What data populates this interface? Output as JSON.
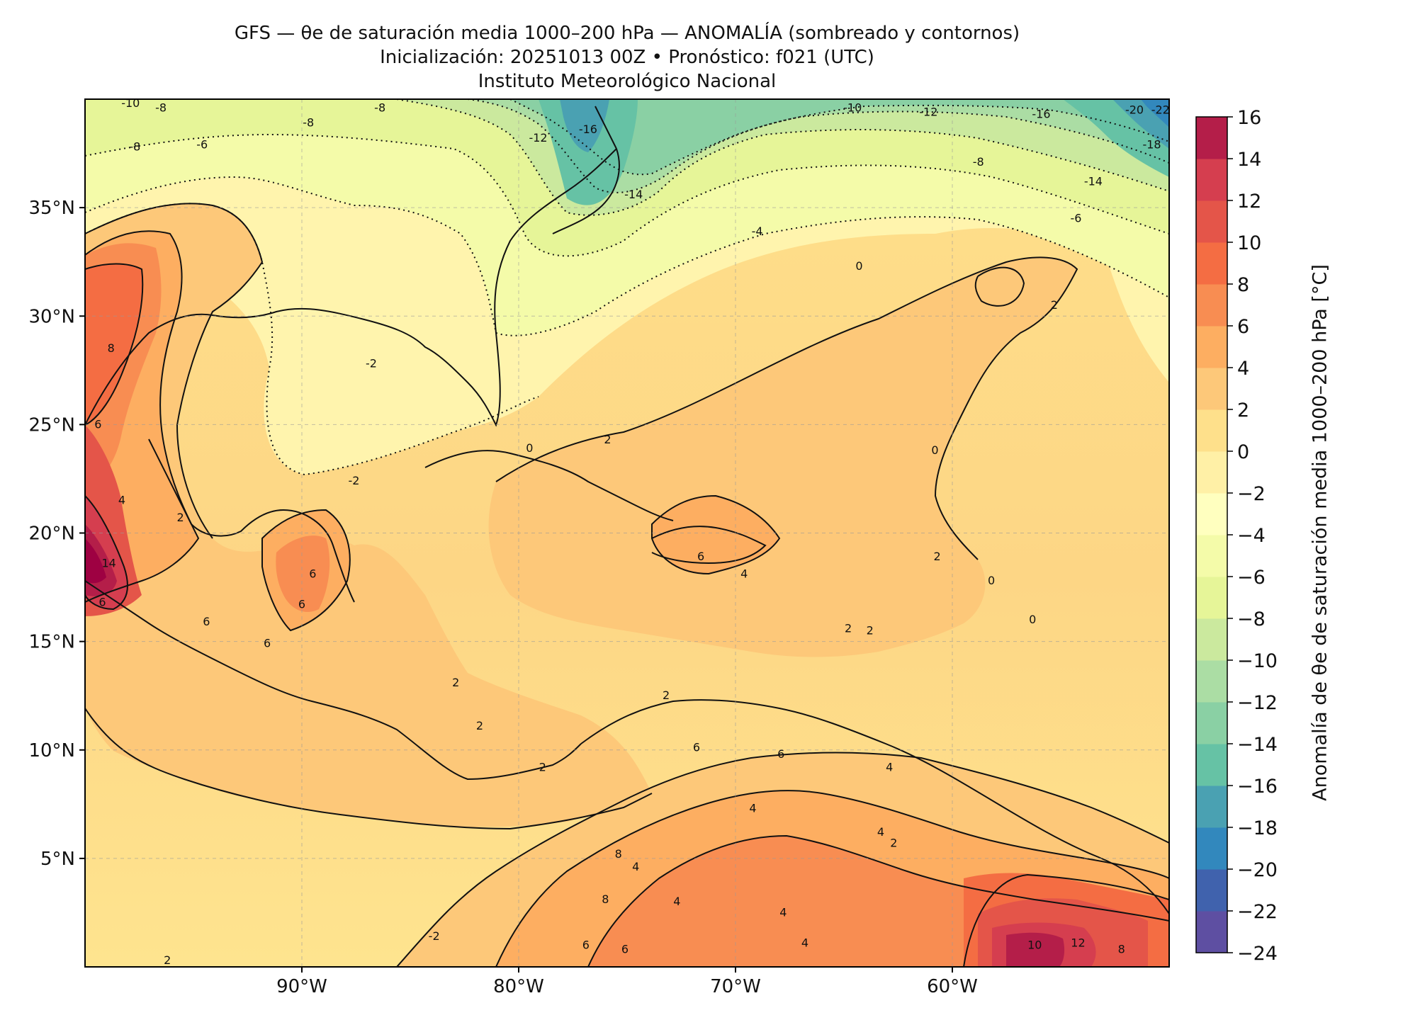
{
  "title": {
    "line1": "GFS — θe de saturación media 1000–200 hPa — ANOMALÍA (sombreado y contornos)",
    "line2": "Inicialización: 20251013 00Z   •   Pronóstico: f021 (UTC)",
    "line3": "Instituto Meteorológico Nacional"
  },
  "map": {
    "lon_range": [
      -100,
      -50
    ],
    "lat_range": [
      0,
      40
    ],
    "lon_ticks": [
      {
        "value": -90,
        "label": "90°W"
      },
      {
        "value": -80,
        "label": "80°W"
      },
      {
        "value": -70,
        "label": "70°W"
      },
      {
        "value": -60,
        "label": "60°W"
      }
    ],
    "lat_ticks": [
      {
        "value": 35,
        "label": "35°N"
      },
      {
        "value": 30,
        "label": "30°N"
      },
      {
        "value": 25,
        "label": "25°N"
      },
      {
        "value": 20,
        "label": "20°N"
      },
      {
        "value": 15,
        "label": "15°N"
      },
      {
        "value": 10,
        "label": "10°N"
      },
      {
        "value": 5,
        "label": "5°N"
      }
    ],
    "contour_labels": [
      {
        "text": "-10",
        "lon": -97.9,
        "lat": 39.8
      },
      {
        "text": "-8",
        "lon": -96.5,
        "lat": 39.6
      },
      {
        "text": "-8",
        "lon": -86.4,
        "lat": 39.6
      },
      {
        "text": "-8",
        "lon": -89.7,
        "lat": 38.9
      },
      {
        "text": "-8",
        "lon": -97.7,
        "lat": 37.8
      },
      {
        "text": "-6",
        "lon": -94.6,
        "lat": 37.9
      },
      {
        "text": "-12",
        "lon": -79.1,
        "lat": 38.2
      },
      {
        "text": "-16",
        "lon": -76.8,
        "lat": 38.6
      },
      {
        "text": "-14",
        "lon": -74.7,
        "lat": 35.6
      },
      {
        "text": "-10",
        "lon": -64.6,
        "lat": 39.6
      },
      {
        "text": "-12",
        "lon": -61.1,
        "lat": 39.4
      },
      {
        "text": "-16",
        "lon": -55.9,
        "lat": 39.3
      },
      {
        "text": "-20",
        "lon": -51.6,
        "lat": 39.5
      },
      {
        "text": "-22",
        "lon": -50.4,
        "lat": 39.5
      },
      {
        "text": "-18",
        "lon": -50.8,
        "lat": 37.9
      },
      {
        "text": "-8",
        "lon": -58.8,
        "lat": 37.1
      },
      {
        "text": "-14",
        "lon": -53.5,
        "lat": 36.2
      },
      {
        "text": "-6",
        "lon": -54.3,
        "lat": 34.5
      },
      {
        "text": "-4",
        "lon": -69.0,
        "lat": 33.9
      },
      {
        "text": "0",
        "lon": -64.3,
        "lat": 32.3
      },
      {
        "text": "2",
        "lon": -55.3,
        "lat": 30.5
      },
      {
        "text": "-2",
        "lon": -86.8,
        "lat": 27.8
      },
      {
        "text": "-2",
        "lon": -87.6,
        "lat": 22.4
      },
      {
        "text": "8",
        "lon": -98.8,
        "lat": 28.5
      },
      {
        "text": "6",
        "lon": -99.4,
        "lat": 25.0
      },
      {
        "text": "4",
        "lon": -98.3,
        "lat": 21.5
      },
      {
        "text": "14",
        "lon": -98.9,
        "lat": 18.6
      },
      {
        "text": "6",
        "lon": -99.2,
        "lat": 16.8
      },
      {
        "text": "2",
        "lon": -95.6,
        "lat": 20.7
      },
      {
        "text": "6",
        "lon": -89.5,
        "lat": 18.1
      },
      {
        "text": "6",
        "lon": -90.0,
        "lat": 16.7
      },
      {
        "text": "6",
        "lon": -94.4,
        "lat": 15.9
      },
      {
        "text": "6",
        "lon": -91.6,
        "lat": 14.9
      },
      {
        "text": "0",
        "lon": -79.5,
        "lat": 23.9
      },
      {
        "text": "2",
        "lon": -75.9,
        "lat": 24.3
      },
      {
        "text": "0",
        "lon": -60.8,
        "lat": 23.8
      },
      {
        "text": "6",
        "lon": -71.6,
        "lat": 18.9
      },
      {
        "text": "4",
        "lon": -69.6,
        "lat": 18.1
      },
      {
        "text": "2",
        "lon": -60.7,
        "lat": 18.9
      },
      {
        "text": "0",
        "lon": -58.2,
        "lat": 17.8
      },
      {
        "text": "0",
        "lon": -56.3,
        "lat": 16.0
      },
      {
        "text": "2",
        "lon": -64.8,
        "lat": 15.6
      },
      {
        "text": "2",
        "lon": -63.8,
        "lat": 15.5
      },
      {
        "text": "2",
        "lon": -82.9,
        "lat": 13.1
      },
      {
        "text": "2",
        "lon": -81.8,
        "lat": 11.1
      },
      {
        "text": "2",
        "lon": -78.9,
        "lat": 9.2
      },
      {
        "text": "2",
        "lon": -73.2,
        "lat": 12.5
      },
      {
        "text": "6",
        "lon": -71.8,
        "lat": 10.1
      },
      {
        "text": "6",
        "lon": -67.9,
        "lat": 9.8
      },
      {
        "text": "4",
        "lon": -62.9,
        "lat": 9.2
      },
      {
        "text": "4",
        "lon": -69.2,
        "lat": 7.3
      },
      {
        "text": "2",
        "lon": -62.7,
        "lat": 5.7
      },
      {
        "text": "4",
        "lon": -63.3,
        "lat": 6.2
      },
      {
        "text": "8",
        "lon": -75.4,
        "lat": 5.2
      },
      {
        "text": "4",
        "lon": -74.6,
        "lat": 4.6
      },
      {
        "text": "8",
        "lon": -76.0,
        "lat": 3.1
      },
      {
        "text": "6",
        "lon": -76.9,
        "lat": 1.0
      },
      {
        "text": "6",
        "lon": -75.1,
        "lat": 0.8
      },
      {
        "text": "4",
        "lon": -72.7,
        "lat": 3.0
      },
      {
        "text": "4",
        "lon": -67.8,
        "lat": 2.5
      },
      {
        "text": "4",
        "lon": -66.8,
        "lat": 1.1
      },
      {
        "text": "10",
        "lon": -56.2,
        "lat": 1.0
      },
      {
        "text": "12",
        "lon": -54.2,
        "lat": 1.1
      },
      {
        "text": "8",
        "lon": -52.2,
        "lat": 0.8
      },
      {
        "text": "-2",
        "lon": -83.9,
        "lat": 1.4
      },
      {
        "text": "2",
        "lon": -96.2,
        "lat": 0.3
      }
    ]
  },
  "colorbar": {
    "label": "Anomalía de θe de saturación media 1000–200 hPa [°C]",
    "min": -24,
    "max": 16,
    "step": 2,
    "tick_labels": [
      "16",
      "14",
      "12",
      "10",
      "8",
      "6",
      "4",
      "2",
      "0",
      "−2",
      "−4",
      "−6",
      "−8",
      "−10",
      "−12",
      "−14",
      "−16",
      "−18",
      "−20",
      "−22",
      "−24"
    ],
    "colors": [
      "#5e4fa2",
      "#4062ad",
      "#3288bd",
      "#4aa1b2",
      "#66c2a5",
      "#8ad0a4",
      "#abdda4",
      "#cbe99e",
      "#e6f598",
      "#f4fba9",
      "#ffffbf",
      "#fff0a6",
      "#fee08b",
      "#fdc879",
      "#fdae61",
      "#f88d52",
      "#f46d43",
      "#e45549",
      "#d53e4f",
      "#b41e49",
      "#9e0142"
    ]
  }
}
